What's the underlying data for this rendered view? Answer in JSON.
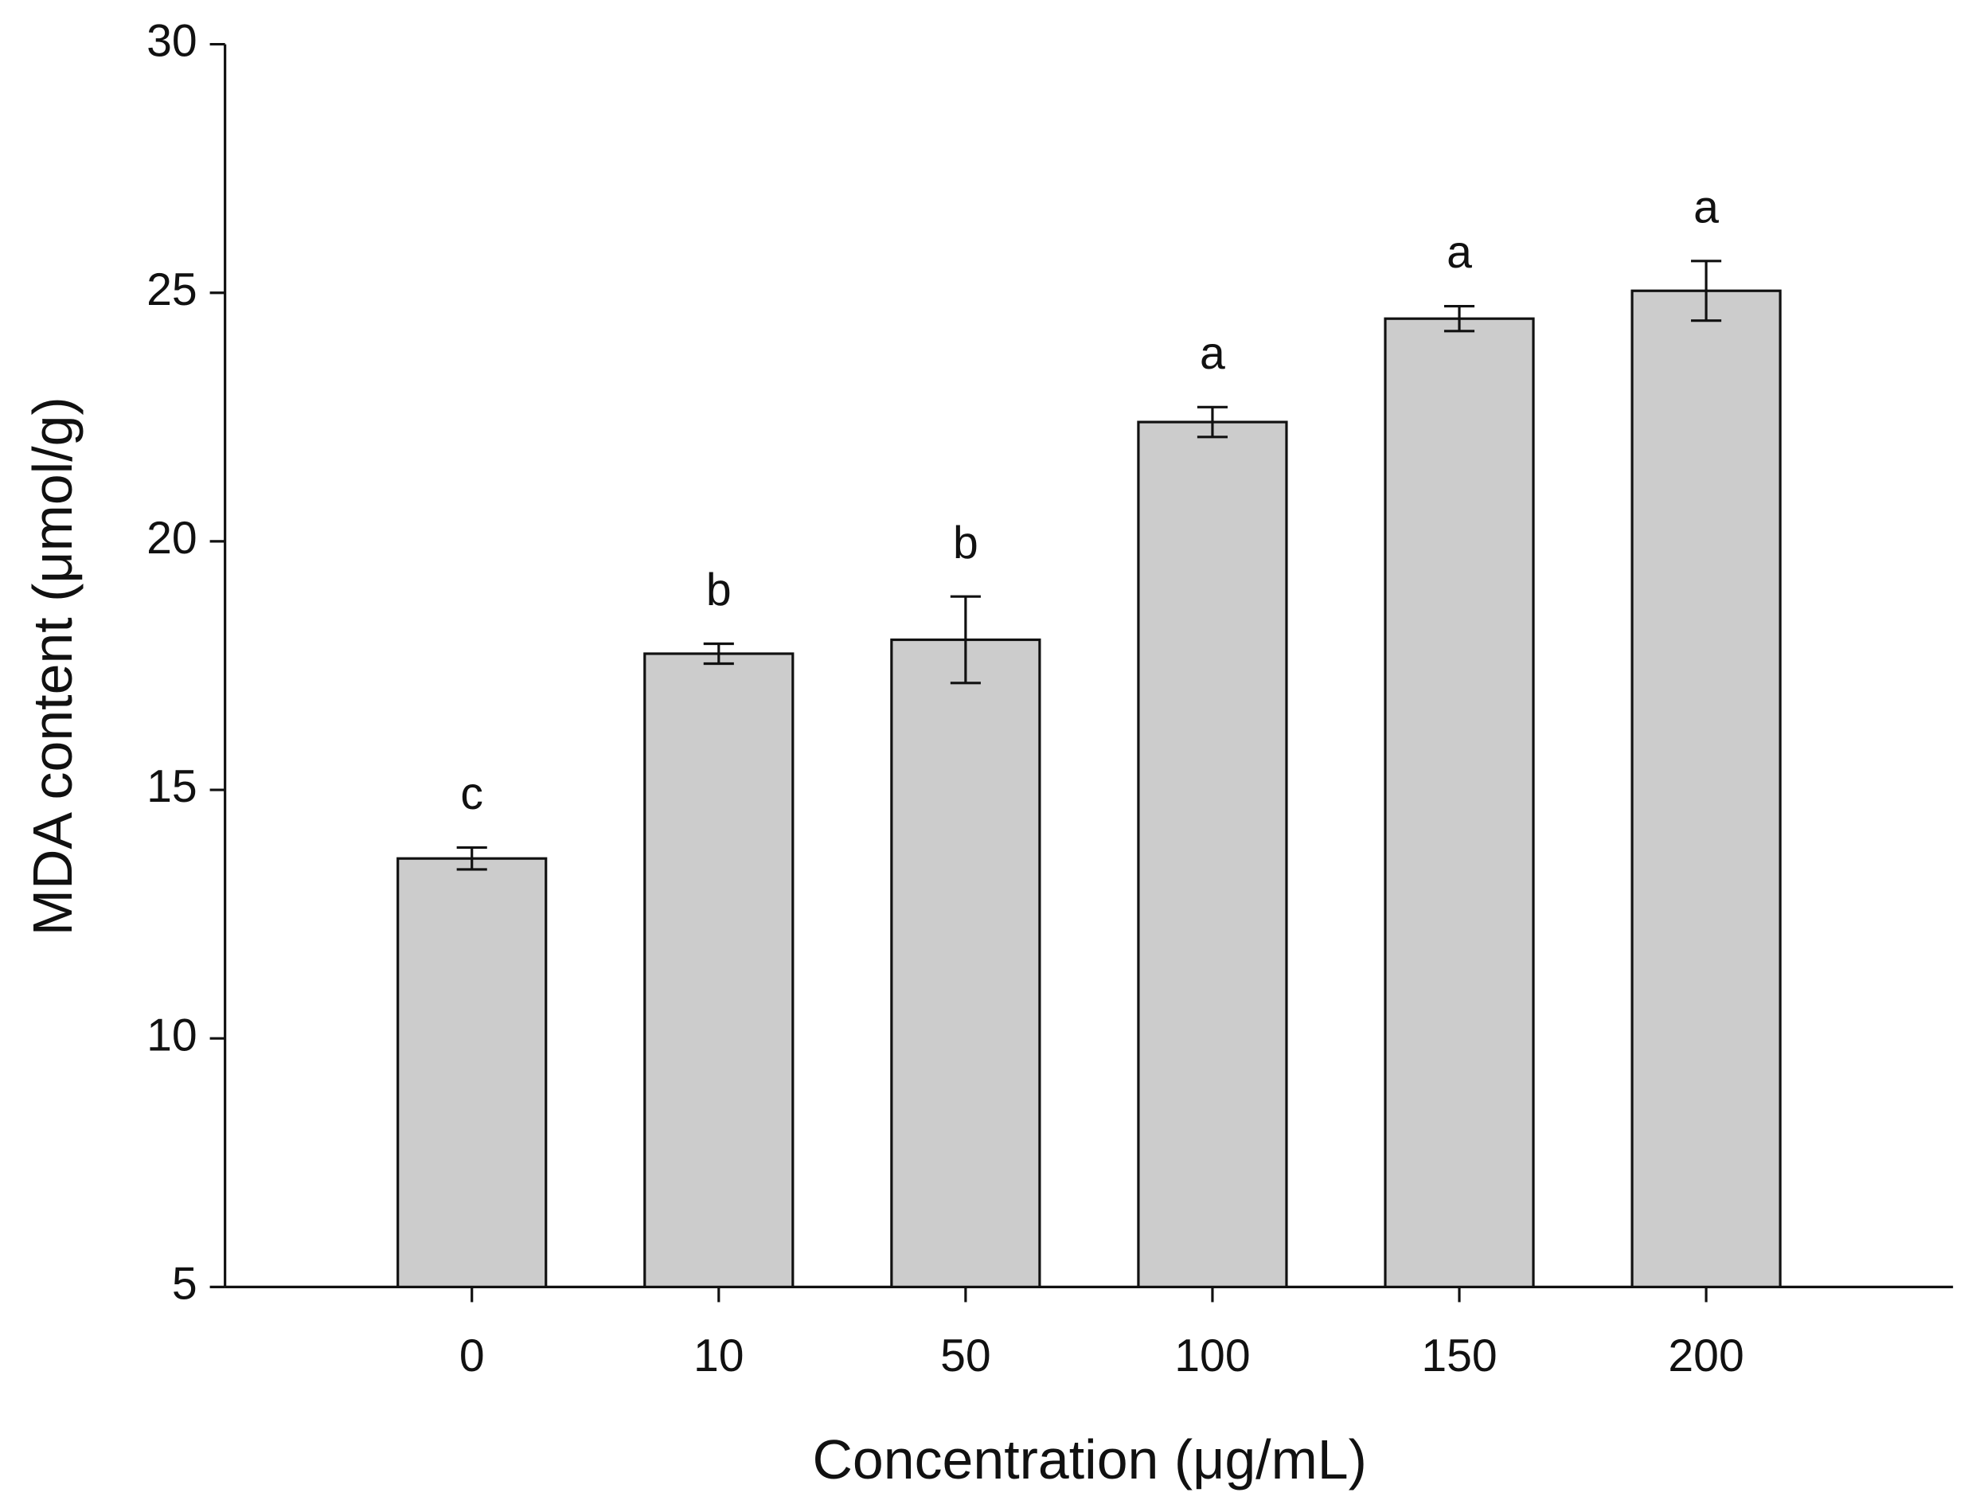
{
  "chart_data": {
    "type": "bar",
    "x_label": "Concentration (μg/mL)",
    "y_label": "MDA content (μmol/g)",
    "categories": [
      "0",
      "10",
      "50",
      "100",
      "150",
      "200"
    ],
    "values": [
      13.62,
      17.74,
      18.02,
      22.4,
      24.48,
      25.04
    ],
    "errors": [
      0.22,
      0.2,
      0.87,
      0.3,
      0.25,
      0.6
    ],
    "significance": [
      "c",
      "b",
      "b",
      "a",
      "a",
      "a"
    ],
    "color": "#cccccc",
    "ylim": [
      5,
      30
    ],
    "yticks": [
      5,
      10,
      15,
      20,
      25,
      30
    ],
    "grid": false
  }
}
